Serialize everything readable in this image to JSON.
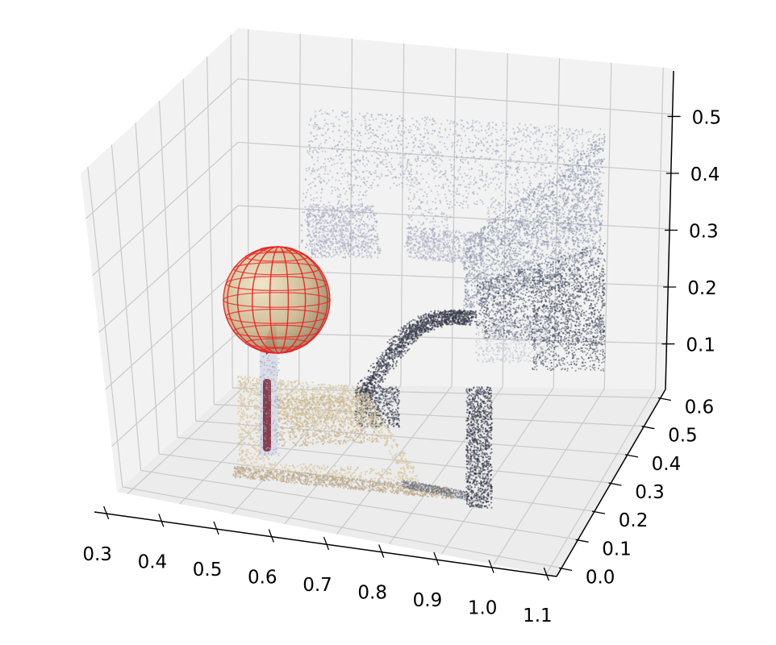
{
  "chart_data": {
    "type": "scatter",
    "subtype": "3d-point-cloud",
    "title": "",
    "xlabel": "",
    "ylabel": "",
    "zlabel": "",
    "x_ticks": [
      "0.3",
      "0.4",
      "0.5",
      "0.6",
      "0.7",
      "0.8",
      "0.9",
      "1.0",
      "1.1"
    ],
    "y_ticks": [
      "0.0",
      "0.1",
      "0.2",
      "0.3",
      "0.4",
      "0.5",
      "0.6"
    ],
    "z_ticks": [
      "0.1",
      "0.2",
      "0.3",
      "0.4",
      "0.5"
    ],
    "xlim": [
      0.28,
      1.12
    ],
    "ylim": [
      -0.03,
      0.63
    ],
    "zlim": [
      0.02,
      0.58
    ],
    "grid": true,
    "legend": "none",
    "colors": {
      "pane": "#f2f2f2",
      "floor_pane": "#ececec",
      "grid": "#c9c9c9",
      "sphere_wire": "#ee2222",
      "sphere_fill": "#c9b78e",
      "wall_points": "#a6a9c0",
      "table_points": "#d8c7a2",
      "dark_points": "#34394a",
      "stick_dark": "#7a2030",
      "stick_light": "#d8dce8"
    },
    "sphere": {
      "x": 0.48,
      "y": 0.4,
      "z": 0.25,
      "r": 0.1
    }
  }
}
